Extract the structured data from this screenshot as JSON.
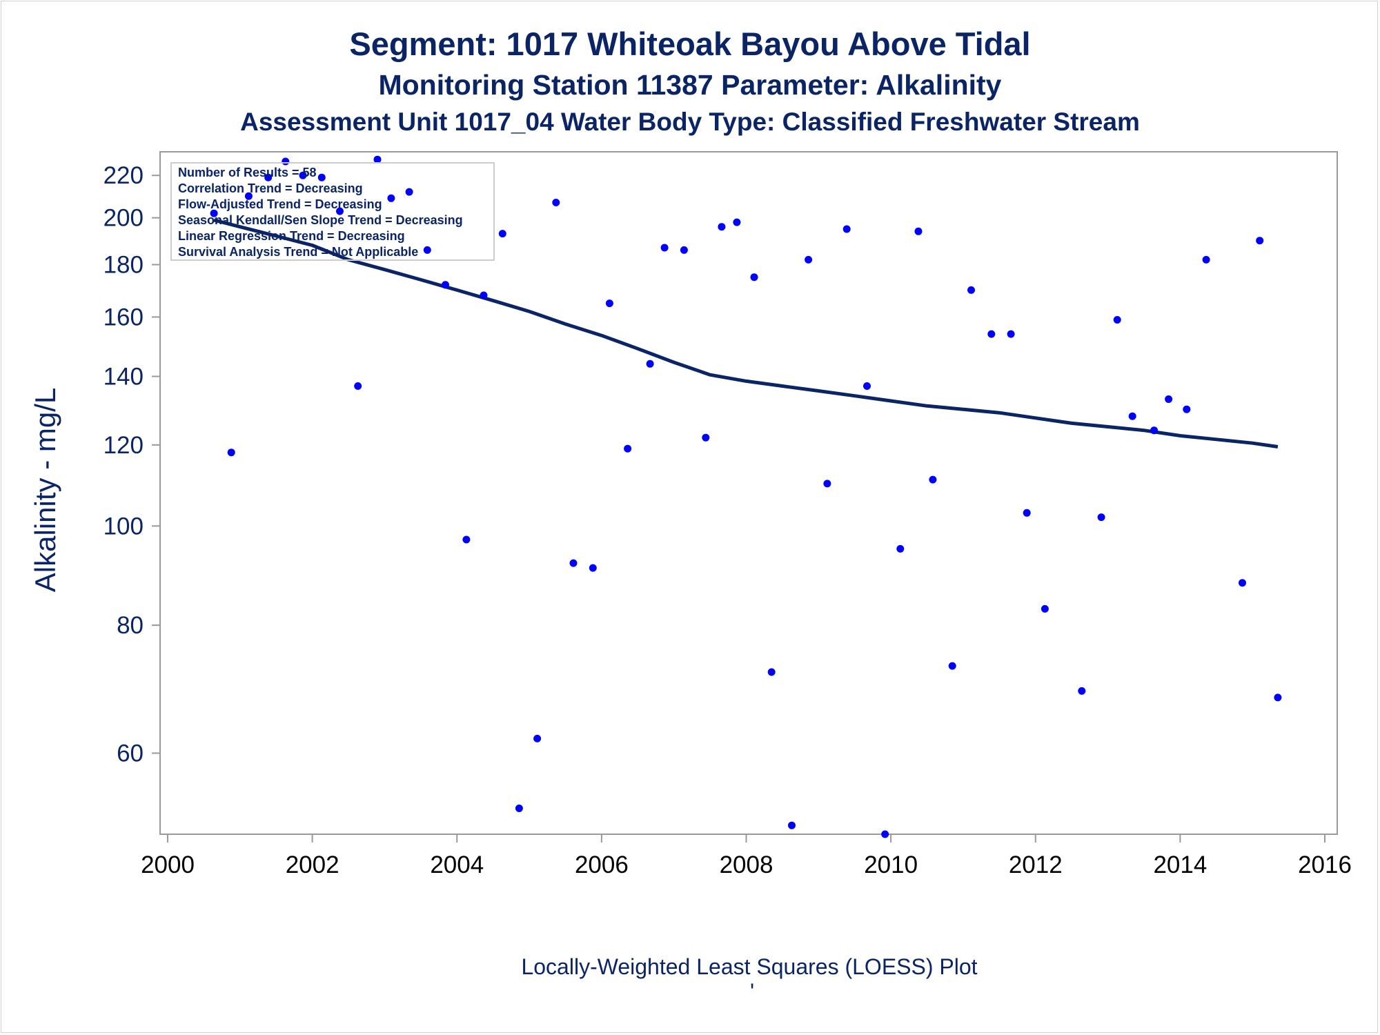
{
  "titles": {
    "line1": "Segment: 1017  Whiteoak Bayou Above Tidal",
    "line2": "Monitoring Station 11387 Parameter: Alkalinity",
    "line3": "Assessment Unit 1017_04   Water Body Type: Classified Freshwater Stream"
  },
  "colors": {
    "title": "#0a2466",
    "points": "#0000ff",
    "loess_line": "#0a2466",
    "axis": "#999999"
  },
  "chart_data": {
    "type": "scatter",
    "ylabel": "Alkalinity - mg/L",
    "footnote": "Locally-Weighted Least Squares (LOESS) Plot",
    "footnote_mark": "'",
    "y_scale": "log",
    "xlim": [
      2000,
      2016
    ],
    "ylim": [
      50,
      232
    ],
    "x_ticks": [
      2000,
      2002,
      2004,
      2006,
      2008,
      2010,
      2012,
      2014,
      2016
    ],
    "y_ticks": [
      60,
      80,
      100,
      120,
      140,
      160,
      180,
      200,
      220
    ],
    "grid": false,
    "stats_box_position": "top-left",
    "stats_box": [
      "Number of Results = 58",
      "Correlation Trend = Decreasing",
      "Flow-Adjusted Trend = Decreasing",
      "Seasonal Kendall/Sen Slope Trend = Decreasing",
      "Linear Regression Trend = Decreasing",
      "Survival Analysis Trend = Not Applicable"
    ],
    "series": [
      {
        "kind": "points",
        "points": [
          [
            2000.64,
            202
          ],
          [
            2000.88,
            118
          ],
          [
            2001.12,
            210
          ],
          [
            2001.39,
            219
          ],
          [
            2001.63,
            227
          ],
          [
            2001.87,
            220
          ],
          [
            2002.13,
            219
          ],
          [
            2002.38,
            203
          ],
          [
            2002.63,
            137
          ],
          [
            2002.9,
            228
          ],
          [
            2003.09,
            209
          ],
          [
            2003.34,
            212
          ],
          [
            2003.59,
            186
          ],
          [
            2003.84,
            172
          ],
          [
            2004.13,
            97
          ],
          [
            2004.37,
            168
          ],
          [
            2004.63,
            193
          ],
          [
            2004.86,
            53
          ],
          [
            2005.11,
            62
          ],
          [
            2005.37,
            207
          ],
          [
            2005.61,
            92
          ],
          [
            2005.88,
            91
          ],
          [
            2006.11,
            165
          ],
          [
            2006.36,
            119
          ],
          [
            2006.67,
            144
          ],
          [
            2006.87,
            187
          ],
          [
            2007.14,
            186
          ],
          [
            2007.44,
            122
          ],
          [
            2007.66,
            196
          ],
          [
            2007.87,
            198
          ],
          [
            2008.11,
            175
          ],
          [
            2008.35,
            72
          ],
          [
            2008.63,
            51
          ],
          [
            2008.86,
            182
          ],
          [
            2009.12,
            110
          ],
          [
            2009.39,
            195
          ],
          [
            2009.67,
            137
          ],
          [
            2009.92,
            50
          ],
          [
            2010.13,
            95
          ],
          [
            2010.38,
            194
          ],
          [
            2010.58,
            111
          ],
          [
            2010.85,
            73
          ],
          [
            2011.11,
            170
          ],
          [
            2011.39,
            154
          ],
          [
            2011.66,
            154
          ],
          [
            2011.88,
            103
          ],
          [
            2012.13,
            83
          ],
          [
            2012.64,
            69
          ],
          [
            2012.91,
            102
          ],
          [
            2013.13,
            159
          ],
          [
            2013.34,
            128
          ],
          [
            2013.64,
            124
          ],
          [
            2013.84,
            133
          ],
          [
            2014.09,
            130
          ],
          [
            2014.36,
            182
          ],
          [
            2014.86,
            88
          ],
          [
            2015.1,
            190
          ],
          [
            2015.35,
            68
          ]
        ]
      },
      {
        "kind": "loess",
        "points": [
          [
            2000.64,
            199
          ],
          [
            2001.0,
            196
          ],
          [
            2001.5,
            192
          ],
          [
            2002.0,
            188
          ],
          [
            2002.5,
            182
          ],
          [
            2003.0,
            178
          ],
          [
            2003.5,
            174
          ],
          [
            2004.0,
            170
          ],
          [
            2004.5,
            166
          ],
          [
            2005.0,
            162
          ],
          [
            2005.5,
            157.5
          ],
          [
            2006.0,
            153.5
          ],
          [
            2006.5,
            149
          ],
          [
            2007.0,
            144.5
          ],
          [
            2007.5,
            140.5
          ],
          [
            2008.0,
            138.5
          ],
          [
            2008.5,
            137
          ],
          [
            2009.0,
            135.5
          ],
          [
            2009.5,
            134
          ],
          [
            2010.0,
            132.5
          ],
          [
            2010.5,
            131
          ],
          [
            2011.0,
            130
          ],
          [
            2011.5,
            129
          ],
          [
            2012.0,
            127.5
          ],
          [
            2012.5,
            126
          ],
          [
            2013.0,
            125
          ],
          [
            2013.5,
            124
          ],
          [
            2014.0,
            122.5
          ],
          [
            2014.5,
            121.5
          ],
          [
            2015.0,
            120.5
          ],
          [
            2015.35,
            119.5
          ]
        ]
      }
    ]
  }
}
